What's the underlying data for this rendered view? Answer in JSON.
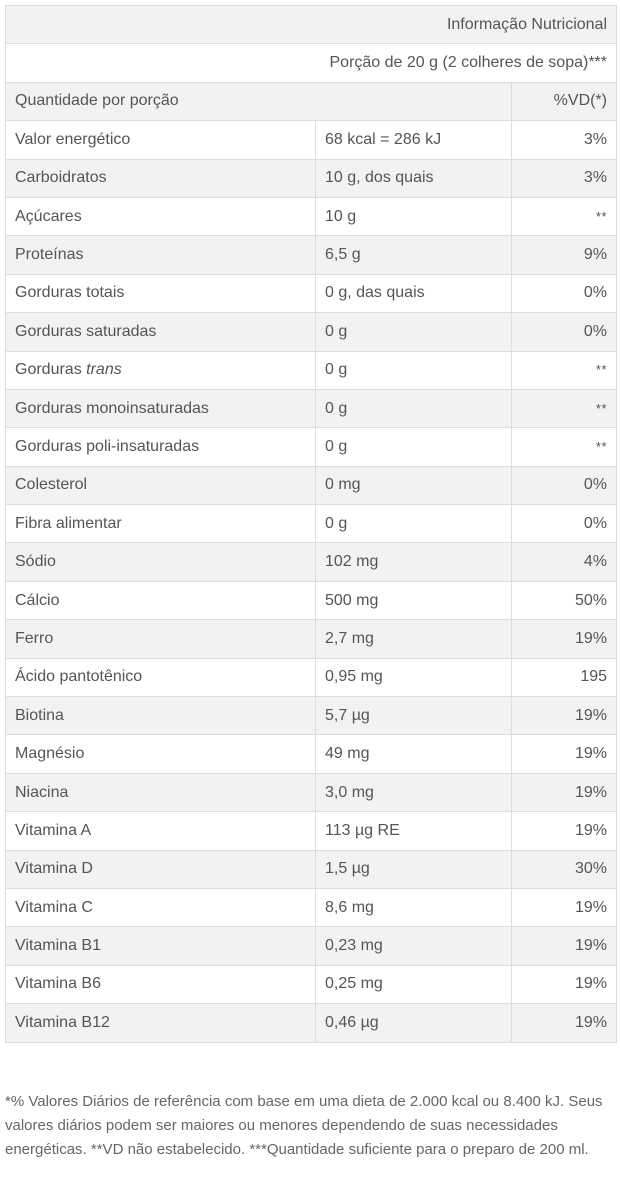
{
  "table": {
    "title": "Informação Nutricional",
    "portion": "Porção de 20 g (2 colheres de sopa)***",
    "header": {
      "quantity_label": "Quantidade por porção",
      "vd_label": "%VD(*)"
    },
    "rows": [
      {
        "nutrient": "Valor energético",
        "amount": "68 kcal = 286 kJ",
        "vd": "3%"
      },
      {
        "nutrient": "Carboidratos",
        "amount": "10 g, dos quais",
        "vd": "3%"
      },
      {
        "nutrient": "Açúcares",
        "amount": "10 g",
        "vd": "**"
      },
      {
        "nutrient": "Proteínas",
        "amount": "6,5 g",
        "vd": "9%"
      },
      {
        "nutrient": "Gorduras totais",
        "amount": "0 g, das quais",
        "vd": "0%"
      },
      {
        "nutrient": "Gorduras saturadas",
        "amount": "0 g",
        "vd": "0%"
      },
      {
        "nutrient": "Gorduras ",
        "nutrient_italic": "trans",
        "amount": "0 g",
        "vd": "**"
      },
      {
        "nutrient": "Gorduras monoinsaturadas",
        "amount": "0 g",
        "vd": "**"
      },
      {
        "nutrient": "Gorduras poli-insaturadas",
        "amount": "0 g",
        "vd": "**"
      },
      {
        "nutrient": "Colesterol",
        "amount": "0 mg",
        "vd": "0%"
      },
      {
        "nutrient": "Fibra alimentar",
        "amount": "0 g",
        "vd": "0%"
      },
      {
        "nutrient": "Sódio",
        "amount": "102 mg",
        "vd": "4%"
      },
      {
        "nutrient": "Cálcio",
        "amount": "500 mg",
        "vd": "50%"
      },
      {
        "nutrient": "Ferro",
        "amount": "2,7 mg",
        "vd": "19%"
      },
      {
        "nutrient": "Ácido pantotênico",
        "amount": "0,95 mg",
        "vd": "195"
      },
      {
        "nutrient": "Biotina",
        "amount": "5,7 µg",
        "vd": "19%"
      },
      {
        "nutrient": "Magnésio",
        "amount": "49 mg",
        "vd": "19%"
      },
      {
        "nutrient": "Niacina",
        "amount": "3,0 mg",
        "vd": "19%"
      },
      {
        "nutrient": "Vitamina A",
        "amount": "113 µg RE",
        "vd": "19%"
      },
      {
        "nutrient": "Vitamina D",
        "amount": "1,5 µg",
        "vd": "30%"
      },
      {
        "nutrient": "Vitamina C",
        "amount": "8,6 mg",
        "vd": "19%"
      },
      {
        "nutrient": "Vitamina B1",
        "amount": "0,23 mg",
        "vd": "19%"
      },
      {
        "nutrient": "Vitamina B6",
        "amount": "0,25 mg",
        "vd": "19%"
      },
      {
        "nutrient": "Vitamina B12",
        "amount": "0,46 µg",
        "vd": "19%"
      }
    ]
  },
  "footnote": "*% Valores Diários de referência com base em uma dieta de 2.000 kcal ou 8.400 kJ. Seus valores diários podem ser maiores ou menores dependendo de suas necessidades energéticas. **VD não estabelecido. ***Quantidade suficiente para o preparo de 200 ml.",
  "colors": {
    "text": "#555555",
    "border": "#dddddd",
    "row_shade": "#f2f2f2"
  }
}
